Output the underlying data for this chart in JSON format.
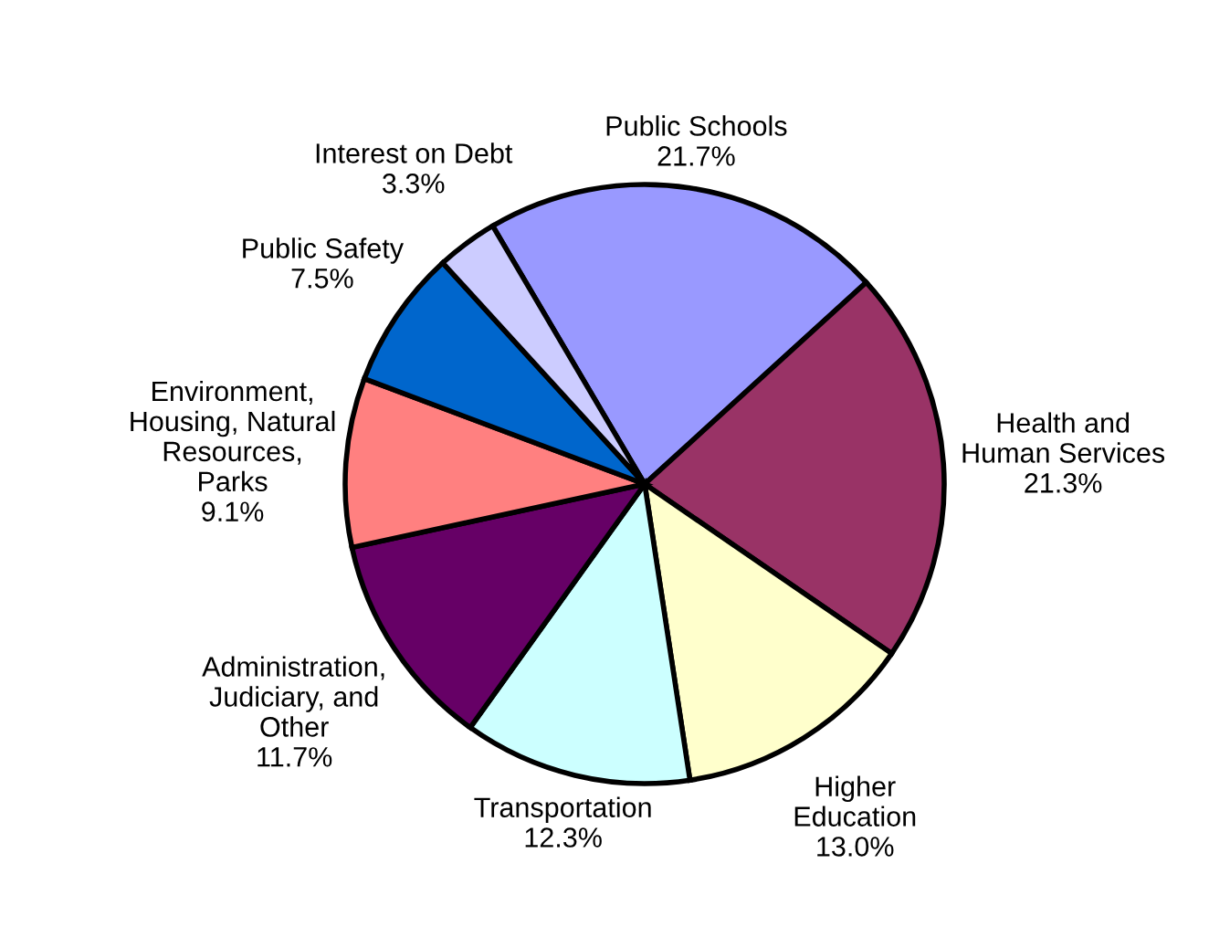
{
  "chart_data": {
    "type": "pie",
    "categories": [
      "Public Schools",
      "Health and\nHuman Services",
      "Higher\nEducation",
      "Transportation",
      "Administration,\nJudiciary, and\nOther",
      "Environment,\nHousing, Natural\nResources,\nParks",
      "Public Safety",
      "Interest on Debt"
    ],
    "values": [
      21.7,
      21.3,
      13.0,
      12.3,
      11.7,
      9.1,
      7.5,
      3.3
    ],
    "value_labels": [
      "21.7%",
      "21.3%",
      "13.0%",
      "12.3%",
      "11.7%",
      "9.1%",
      "7.5%",
      "3.3%"
    ],
    "colors": [
      "#9999ff",
      "#993366",
      "#ffffcc",
      "#ccffff",
      "#660066",
      "#ff8080",
      "#0066cc",
      "#ccccff"
    ],
    "legend": false
  }
}
